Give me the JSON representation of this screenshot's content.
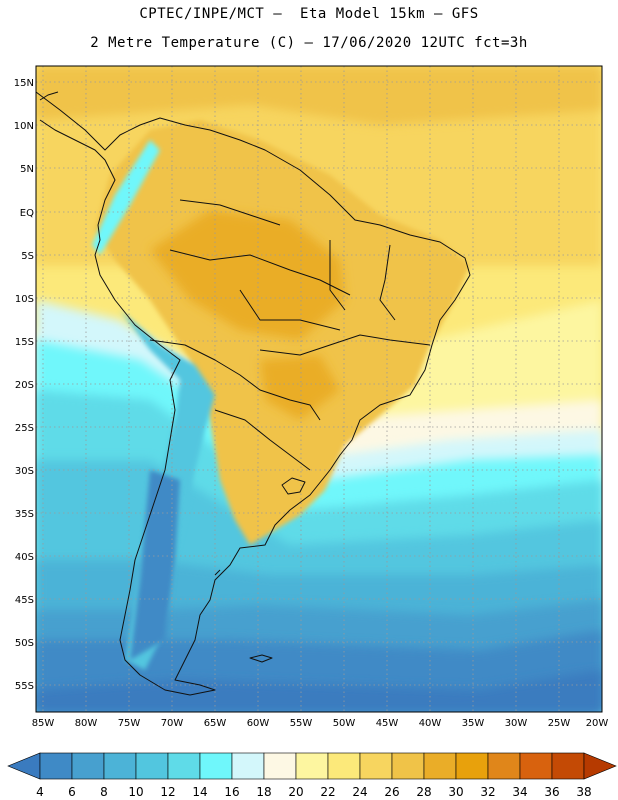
{
  "header": {
    "title_line1": "CPTEC/INPE/MCT –  Eta Model 15km – GFS",
    "title_line2": "2 Metre Temperature (C) – 17/06/2020 12UTC fct=3h"
  },
  "map": {
    "lat_labels": [
      "15N",
      "10N",
      "5N",
      "EQ",
      "5S",
      "10S",
      "15S",
      "20S",
      "25S",
      "30S",
      "35S",
      "40S",
      "45S",
      "50S",
      "55S"
    ],
    "lon_labels": [
      "85W",
      "80W",
      "75W",
      "70W",
      "65W",
      "60W",
      "55W",
      "50W",
      "45W",
      "40W",
      "35W",
      "30W",
      "25W",
      "20W"
    ],
    "extent": {
      "lon_min": -85.8,
      "lon_max": -19.8,
      "lat_min": -58.2,
      "lat_max": 16.5
    }
  },
  "colorbar": {
    "labels": [
      "4",
      "6",
      "8",
      "10",
      "12",
      "14",
      "16",
      "18",
      "20",
      "22",
      "24",
      "26",
      "28",
      "30",
      "32",
      "34",
      "36",
      "38"
    ],
    "colors": [
      "#3a7bbf",
      "#3f8ac6",
      "#47a0cf",
      "#4cb3d7",
      "#52c6df",
      "#5fdbe8",
      "#6ff7fb",
      "#d3f7fb",
      "#fdf8e4",
      "#fdf6a0",
      "#fce97a",
      "#f7d55f",
      "#f0c348",
      "#eaad28",
      "#e8a10c",
      "#e0861a",
      "#d8620e",
      "#c44a05",
      "#b63a00"
    ]
  }
}
